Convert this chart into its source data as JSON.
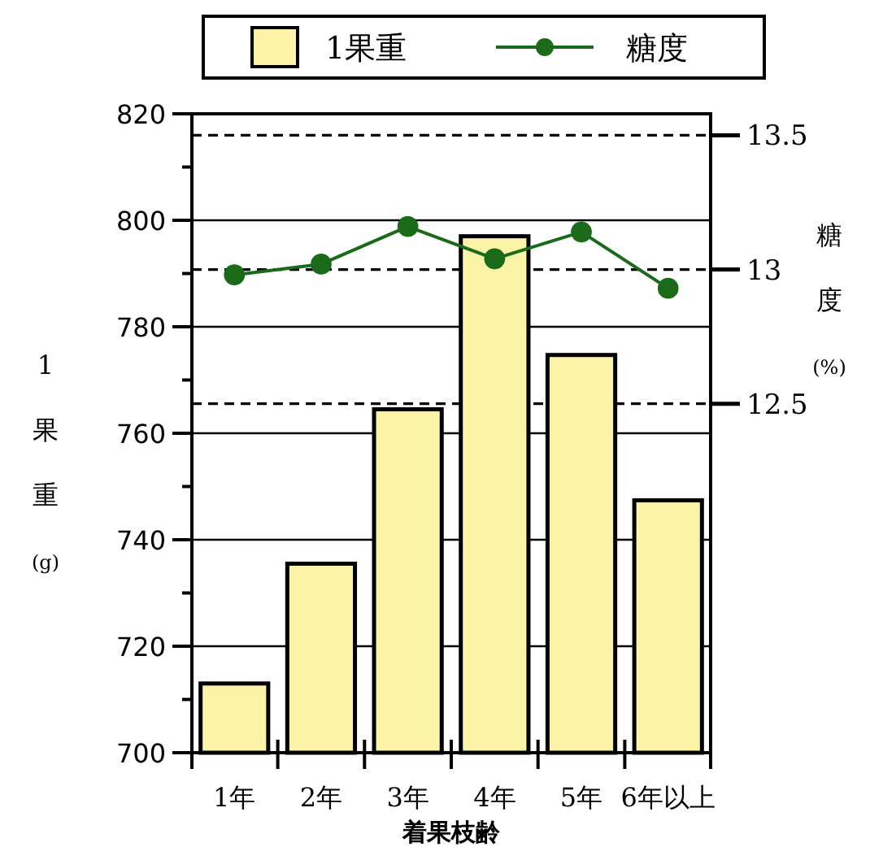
{
  "chart_data": {
    "type": "bar",
    "xlabel": "着果枝齢",
    "ylabel": "1果重(g)",
    "y2label": "糖度(%)",
    "categories": [
      "1年",
      "2年",
      "3年",
      "4年",
      "5年",
      "6年以上"
    ],
    "series": [
      {
        "name": "1果重",
        "color": "#fbf3a8",
        "values": [
          713,
          735.5,
          764.5,
          797,
          774.7,
          747.4
        ]
      },
      {
        "name": "糖度",
        "type": "line",
        "axis": "y2",
        "color": "#1a6a1a",
        "marker": "circle",
        "line_style": "solid",
        "values": [
          12.98,
          13.02,
          13.16,
          13.04,
          13.14,
          12.93
        ]
      }
    ],
    "ylim": [
      700,
      820
    ],
    "yticks": [
      700,
      {
        "value": 710,
        "label": null
      },
      720,
      {
        "value": 730,
        "label": null
      },
      740,
      {
        "value": 750,
        "label": null
      },
      760,
      {
        "value": 770,
        "label": null
      },
      780,
      {
        "value": 790,
        "label": null
      },
      800,
      {
        "value": 810,
        "label": null
      },
      820
    ],
    "y2lim": [
      11.2,
      13.58
    ],
    "y2ticks": [
      12.5,
      13,
      13.5
    ],
    "grid": true,
    "legend": "top"
  }
}
